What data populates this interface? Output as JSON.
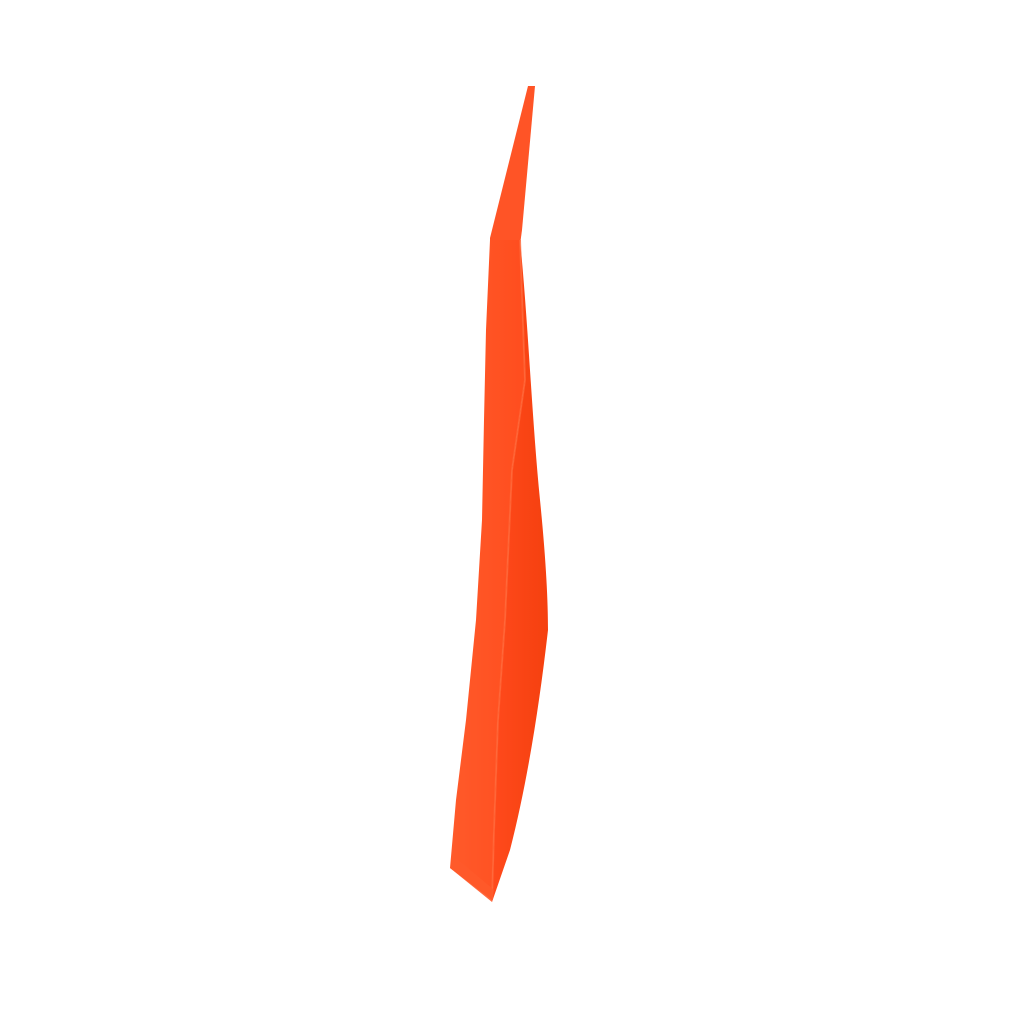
{
  "scene": {
    "subject": "orange-wedge-strip",
    "colors": {
      "background": "#ffffff",
      "face_light": "#ff5a2a",
      "face_mid": "#ff4a1c",
      "face_dark": "#f23f12",
      "edge": "#ff6a3a"
    }
  }
}
